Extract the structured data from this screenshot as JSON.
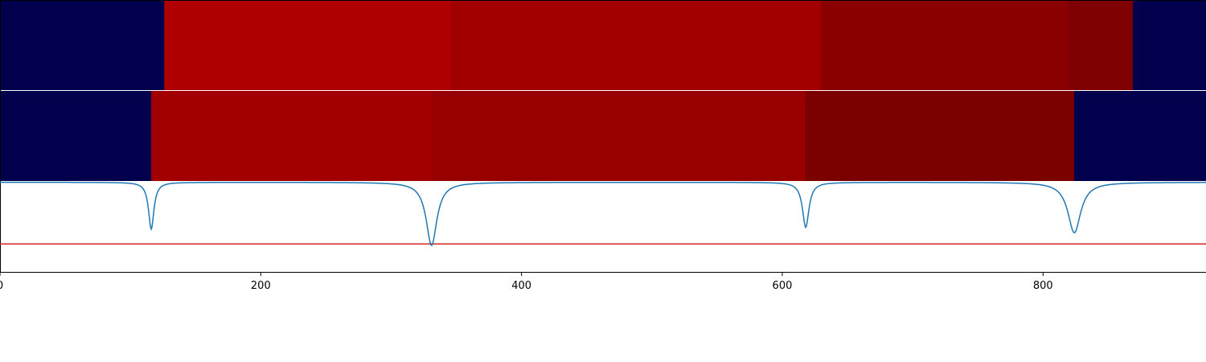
{
  "chart_data": [
    {
      "type": "heatmap",
      "x_range": [
        0,
        925
      ],
      "background_color": "#00004c",
      "segments": [
        {
          "start": 0,
          "end": 126,
          "color": "#00004c"
        },
        {
          "start": 126,
          "end": 346,
          "color": "#ae0000"
        },
        {
          "start": 346,
          "end": 630,
          "color": "#a20000"
        },
        {
          "start": 630,
          "end": 820,
          "color": "#8a0000"
        },
        {
          "start": 820,
          "end": 869,
          "color": "#7f0000"
        },
        {
          "start": 869,
          "end": 925,
          "color": "#00004c"
        }
      ]
    },
    {
      "type": "heatmap",
      "x_range": [
        0,
        925
      ],
      "background_color": "#00004c",
      "segments": [
        {
          "start": 0,
          "end": 116,
          "color": "#00004c"
        },
        {
          "start": 116,
          "end": 332,
          "color": "#a20000"
        },
        {
          "start": 332,
          "end": 618,
          "color": "#980000"
        },
        {
          "start": 618,
          "end": 824,
          "color": "#7b0000"
        },
        {
          "start": 824,
          "end": 925,
          "color": "#00004c"
        }
      ]
    },
    {
      "type": "line",
      "xlim": [
        0,
        925
      ],
      "ylim": [
        0,
        1
      ],
      "grid": false,
      "baseline": 0.995,
      "dips": [
        {
          "x": 116,
          "depth": 0.52,
          "width": 2.5
        },
        {
          "x": 331,
          "depth": 0.7,
          "width": 5
        },
        {
          "x": 618,
          "depth": 0.5,
          "width": 3
        },
        {
          "x": 824,
          "depth": 0.56,
          "width": 6
        }
      ],
      "threshold": 0.31,
      "line_color": "#1f77b4",
      "threshold_color": "#d62728",
      "x_ticks": [
        0,
        200,
        400,
        600,
        800
      ],
      "x_tick_labels": [
        "0",
        "200",
        "400",
        "600",
        "800"
      ]
    }
  ]
}
